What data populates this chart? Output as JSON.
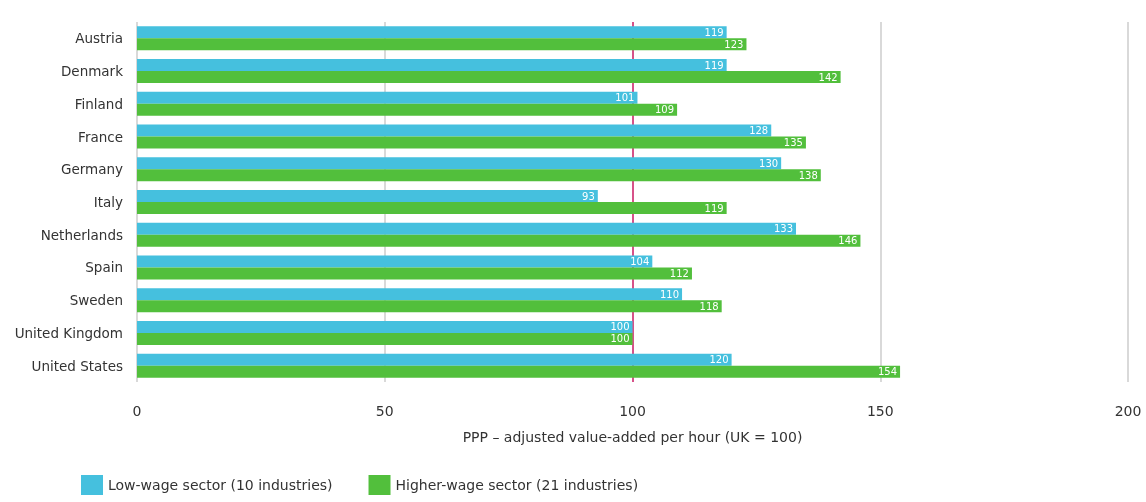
{
  "chart_data": {
    "type": "bar",
    "orientation": "horizontal",
    "xlabel": "PPP – adjusted value-added per hour (UK = 100)",
    "categories": [
      "Austria",
      "Denmark",
      "Finland",
      "France",
      "Germany",
      "Italy",
      "Netherlands",
      "Spain",
      "Sweden",
      "United Kingdom",
      "United States"
    ],
    "series": [
      {
        "name": "Low-wage sector (10 industries)",
        "color": "#45c0de",
        "values": [
          119,
          119,
          101,
          128,
          130,
          93,
          133,
          104,
          110,
          100,
          120
        ]
      },
      {
        "name": "Higher-wage sector (21 industries)",
        "color": "#52bf3c",
        "values": [
          123,
          142,
          109,
          135,
          138,
          119,
          146,
          112,
          118,
          100,
          154
        ]
      }
    ],
    "xlim": [
      0,
      200
    ],
    "xticks": [
      0,
      50,
      100,
      150,
      200
    ],
    "grid": "x",
    "legend": "bottom left",
    "data_labels": true,
    "ref_lines": [
      {
        "axis": "x",
        "value": 100,
        "color": "#d6246e"
      }
    ]
  }
}
